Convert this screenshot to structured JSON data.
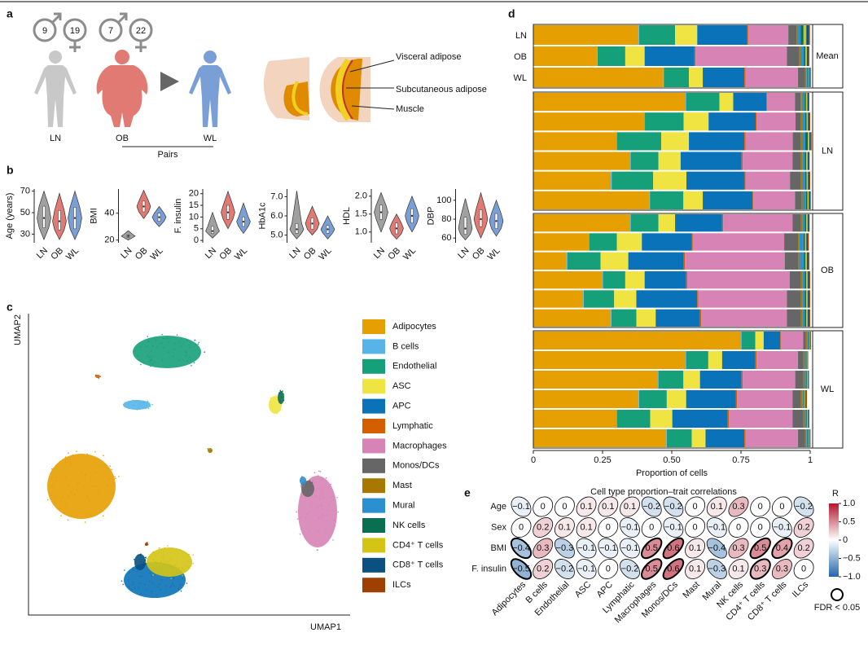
{
  "panel_labels": [
    "a",
    "b",
    "c",
    "d",
    "e"
  ],
  "panel_a": {
    "groups": [
      {
        "label": "LN",
        "male": 9,
        "female": 19
      },
      {
        "label": "OB",
        "male": 7,
        "female": 22
      },
      {
        "label": "WL"
      }
    ],
    "pairs_label": "Pairs",
    "tissue_labels": [
      "Visceral adipose",
      "Subcutaneous adipose",
      "Muscle"
    ]
  },
  "cell_types": [
    {
      "name": "Adipocytes",
      "color": "#e69f00"
    },
    {
      "name": "B cells",
      "color": "#56b4e9"
    },
    {
      "name": "Endothelial",
      "color": "#16a07a"
    },
    {
      "name": "ASC",
      "color": "#f0e442"
    },
    {
      "name": "APC",
      "color": "#0a72b8"
    },
    {
      "name": "Lymphatic",
      "color": "#d55e00"
    },
    {
      "name": "Macrophages",
      "color": "#d783b5"
    },
    {
      "name": "Monos/DCs",
      "color": "#666666"
    },
    {
      "name": "Mast",
      "color": "#a87800"
    },
    {
      "name": "Mural",
      "color": "#2a90d0"
    },
    {
      "name": "NK cells",
      "color": "#0a6e50"
    },
    {
      "name": "CD4⁺ T cells",
      "color": "#d4c414"
    },
    {
      "name": "CD8⁺ T cells",
      "color": "#0a5080"
    },
    {
      "name": "ILCs",
      "color": "#a04000"
    }
  ],
  "panel_b": {
    "type": "violin",
    "categories": [
      "LN",
      "OB",
      "WL"
    ],
    "colors": [
      "#a0a0a0",
      "#e07a72",
      "#7a9fd6"
    ],
    "plots": [
      {
        "ylabel": "Age (years)",
        "ylim": [
          22,
          72
        ],
        "yticks": [
          30,
          50,
          70
        ],
        "stats": [
          [
            25,
            36,
            45,
            56,
            70
          ],
          [
            25,
            34,
            42,
            52,
            68
          ],
          [
            25,
            35,
            45,
            55,
            70
          ]
        ]
      },
      {
        "ylabel": "BMI",
        "ylim": [
          18,
          58
        ],
        "yticks": [
          20,
          40
        ],
        "stats": [
          [
            20,
            22,
            23,
            24,
            27
          ],
          [
            36,
            41,
            45,
            49,
            57
          ],
          [
            30,
            34,
            37,
            40,
            45
          ]
        ]
      },
      {
        "ylabel": "F. insulin",
        "ylim": [
          -1,
          22
        ],
        "yticks": [
          0,
          5,
          10,
          15,
          20
        ],
        "stats": [
          [
            1,
            3,
            4,
            6,
            12
          ],
          [
            5,
            9,
            12,
            15,
            21
          ],
          [
            3,
            6,
            8,
            10,
            16
          ]
        ]
      },
      {
        "ylabel": "HbA1c",
        "ylim": [
          4.6,
          7.4
        ],
        "yticks": [
          {
            "value": 5,
            "label": "5.0"
          },
          {
            "value": 6,
            "label": "6.0"
          },
          {
            "value": 7,
            "label": "7.0"
          }
        ],
        "stats": [
          [
            4.8,
            5.1,
            5.3,
            5.6,
            7.3
          ],
          [
            5,
            5.3,
            5.6,
            5.9,
            6.5
          ],
          [
            4.8,
            5.1,
            5.3,
            5.5,
            6
          ]
        ]
      },
      {
        "ylabel": "HDL",
        "ylim": [
          0.7,
          2.2
        ],
        "yticks": [
          {
            "value": 1,
            "label": "1.0"
          },
          1.5,
          {
            "value": 2,
            "label": "2.0"
          }
        ],
        "stats": [
          [
            1,
            1.35,
            1.55,
            1.75,
            2.1
          ],
          [
            0.8,
            0.95,
            1.1,
            1.25,
            1.5
          ],
          [
            1,
            1.25,
            1.45,
            1.65,
            2
          ]
        ]
      },
      {
        "ylabel": "DBP",
        "ylim": [
          55,
          112
        ],
        "yticks": [
          60,
          80,
          100
        ],
        "stats": [
          [
            58,
            64,
            70,
            82,
            102
          ],
          [
            60,
            72,
            80,
            90,
            108
          ],
          [
            62,
            70,
            78,
            86,
            100
          ]
        ]
      }
    ]
  },
  "panel_c": {
    "type": "scatter",
    "xlabel": "UMAP1",
    "ylabel": "UMAP2"
  },
  "panel_d": {
    "type": "bar",
    "xlabel": "Proportion of cells",
    "xlim": [
      0,
      1
    ],
    "xticks": [
      0,
      {
        "value": 0.25,
        "label": "0.25"
      },
      {
        "value": 0.5,
        "label": "0.50"
      },
      {
        "value": 0.75,
        "label": "0.75"
      },
      1
    ],
    "facets": [
      {
        "label": "Mean",
        "rows": [
          {
            "name": "LN",
            "values": [
              0.38,
              0.002,
              0.13,
              0.08,
              0.18,
              0.004,
              0.145,
              0.03,
              0.005,
              0.01,
              0.01,
              0.01,
              0.01,
              0.003
            ]
          },
          {
            "name": "OB",
            "values": [
              0.23,
              0.002,
              0.1,
              0.07,
              0.18,
              0.004,
              0.33,
              0.045,
              0.005,
              0.012,
              0.005,
              0.005,
              0.005,
              0.004
            ]
          },
          {
            "name": "WL",
            "values": [
              0.47,
              0.002,
              0.09,
              0.05,
              0.15,
              0.004,
              0.19,
              0.025,
              0.005,
              0.005,
              0.003,
              0.003,
              0.003,
              0.002
            ]
          }
        ]
      },
      {
        "label": "LN",
        "rows": [
          {
            "values": [
              0.55,
              0.002,
              0.12,
              0.05,
              0.12,
              0.003,
              0.1,
              0.02,
              0.005,
              0.01,
              0.005,
              0.005,
              0.005,
              0.002
            ]
          },
          {
            "values": [
              0.4,
              0.003,
              0.14,
              0.09,
              0.17,
              0.004,
              0.14,
              0.02,
              0.005,
              0.01,
              0.005,
              0.005,
              0.005,
              0.003
            ]
          },
          {
            "values": [
              0.3,
              0.002,
              0.16,
              0.1,
              0.2,
              0.005,
              0.17,
              0.03,
              0.005,
              0.01,
              0.01,
              0.005,
              0.005,
              0.003
            ]
          },
          {
            "values": [
              0.35,
              0.002,
              0.1,
              0.08,
              0.22,
              0.004,
              0.18,
              0.03,
              0.005,
              0.01,
              0.005,
              0.005,
              0.005,
              0.002
            ]
          },
          {
            "values": [
              0.28,
              0.003,
              0.15,
              0.12,
              0.21,
              0.004,
              0.16,
              0.04,
              0.005,
              0.01,
              0.005,
              0.005,
              0.005,
              0.003
            ]
          },
          {
            "values": [
              0.42,
              0.002,
              0.12,
              0.07,
              0.18,
              0.003,
              0.15,
              0.025,
              0.005,
              0.01,
              0.005,
              0.005,
              0.005,
              0.002
            ]
          }
        ]
      },
      {
        "label": "OB",
        "rows": [
          {
            "values": [
              0.35,
              0.002,
              0.1,
              0.06,
              0.17,
              0.004,
              0.25,
              0.03,
              0.005,
              0.01,
              0.005,
              0.005,
              0.005,
              0.002
            ]
          },
          {
            "values": [
              0.2,
              0.002,
              0.1,
              0.09,
              0.18,
              0.004,
              0.33,
              0.05,
              0.005,
              0.015,
              0.005,
              0.005,
              0.005,
              0.004
            ]
          },
          {
            "values": [
              0.12,
              0.003,
              0.12,
              0.1,
              0.2,
              0.005,
              0.36,
              0.05,
              0.005,
              0.015,
              0.005,
              0.005,
              0.005,
              0.004
            ]
          },
          {
            "values": [
              0.25,
              0.002,
              0.08,
              0.07,
              0.15,
              0.004,
              0.37,
              0.04,
              0.005,
              0.01,
              0.005,
              0.005,
              0.005,
              0.004
            ]
          },
          {
            "values": [
              0.18,
              0.002,
              0.11,
              0.08,
              0.22,
              0.004,
              0.32,
              0.05,
              0.005,
              0.01,
              0.005,
              0.005,
              0.005,
              0.004
            ]
          },
          {
            "values": [
              0.28,
              0.002,
              0.09,
              0.07,
              0.16,
              0.004,
              0.31,
              0.05,
              0.005,
              0.01,
              0.005,
              0.005,
              0.005,
              0.004
            ]
          }
        ]
      },
      {
        "label": "WL",
        "rows": [
          {
            "values": [
              0.75,
              0.002,
              0.05,
              0.03,
              0.06,
              0.003,
              0.08,
              0.01,
              0.005,
              0.005,
              0.002,
              0.002,
              0.002,
              0.002
            ]
          },
          {
            "values": [
              0.55,
              0.002,
              0.08,
              0.05,
              0.12,
              0.004,
              0.15,
              0.02,
              0.005,
              0.005,
              0.002,
              0.002,
              0.002,
              0.001
            ]
          },
          {
            "values": [
              0.45,
              0.002,
              0.09,
              0.06,
              0.15,
              0.004,
              0.19,
              0.03,
              0.005,
              0.005,
              0.003,
              0.003,
              0.003,
              0.001
            ]
          },
          {
            "values": [
              0.38,
              0.002,
              0.1,
              0.07,
              0.18,
              0.004,
              0.2,
              0.03,
              0.005,
              0.005,
              0.003,
              0.003,
              0.003,
              0.003
            ]
          },
          {
            "values": [
              0.3,
              0.002,
              0.12,
              0.08,
              0.2,
              0.004,
              0.23,
              0.04,
              0.005,
              0.005,
              0.003,
              0.003,
              0.003,
              0.002
            ]
          },
          {
            "values": [
              0.48,
              0.002,
              0.09,
              0.05,
              0.14,
              0.004,
              0.19,
              0.025,
              0.005,
              0.005,
              0.003,
              0.003,
              0.002,
              0.002
            ]
          }
        ]
      }
    ]
  },
  "panel_e": {
    "type": "heatmap",
    "title": "Cell type proportion–trait correlations",
    "rows": [
      {
        "name": "Age",
        "values": [
          -0.1,
          0,
          0,
          0.1,
          0.1,
          0.1,
          -0.2,
          -0.2,
          0,
          0.1,
          0.3,
          0,
          0,
          -0.2
        ],
        "value_labels": [
          "−0.1",
          "0",
          "0",
          "0.1",
          "0.1",
          "0.1",
          "−0.2",
          "−0.2",
          "0",
          "0.1",
          "0.3",
          "0",
          "0",
          "−0.2"
        ],
        "fdr": [
          false,
          false,
          false,
          false,
          false,
          false,
          false,
          false,
          false,
          false,
          false,
          false,
          false,
          false
        ]
      },
      {
        "name": "Sex",
        "values": [
          0,
          0.2,
          0.1,
          0.1,
          0,
          -0.1,
          0,
          -0.1,
          0,
          -0.1,
          0,
          0,
          -0.1,
          0.2
        ],
        "value_labels": [
          "0",
          "0.2",
          "0.1",
          "0.1",
          "0",
          "−0.1",
          "0",
          "−0.1",
          "0",
          "−0.1",
          "0",
          "0",
          "−0.1",
          "0.2"
        ],
        "fdr": [
          false,
          false,
          false,
          false,
          false,
          false,
          false,
          false,
          false,
          false,
          false,
          false,
          false,
          false
        ]
      },
      {
        "name": "BMI",
        "values": [
          -0.4,
          0.3,
          -0.3,
          -0.1,
          -0.1,
          -0.1,
          0.5,
          0.6,
          0.1,
          -0.4,
          0.3,
          0.5,
          0.4,
          0.2
        ],
        "value_labels": [
          "−0.4",
          "0.3",
          "−0.3",
          "−0.1",
          "−0.1",
          "−0.1",
          "0.5",
          "0.6",
          "0.1",
          "−0.4",
          "0.3",
          "0.5",
          "0.4",
          "0.2"
        ],
        "fdr": [
          true,
          false,
          false,
          false,
          false,
          false,
          true,
          true,
          false,
          false,
          false,
          true,
          true,
          false
        ]
      },
      {
        "name": "F. insulin",
        "values": [
          -0.5,
          0.2,
          -0.2,
          -0.1,
          0,
          -0.2,
          0.5,
          0.6,
          0.1,
          -0.3,
          0.1,
          0.3,
          0.3,
          0
        ],
        "value_labels": [
          "−0.5",
          "0.2",
          "−0.2",
          "−0.1",
          "0",
          "−0.2",
          "0.5",
          "0.6",
          "0.1",
          "−0.3",
          "0.1",
          "0.3",
          "0.3",
          "0"
        ],
        "fdr": [
          true,
          false,
          false,
          false,
          false,
          false,
          true,
          true,
          false,
          false,
          false,
          true,
          false,
          false
        ]
      }
    ],
    "colorbar": {
      "title": "R",
      "lim": [
        -1,
        1
      ],
      "ticks": [
        {
          "value": 1,
          "label": "1.0"
        },
        0.5,
        0,
        {
          "value": -0.5,
          "label": "−0.5"
        },
        {
          "value": -1,
          "label": "−1.0"
        }
      ]
    },
    "fdr_legend": "FDR < 0.05"
  }
}
